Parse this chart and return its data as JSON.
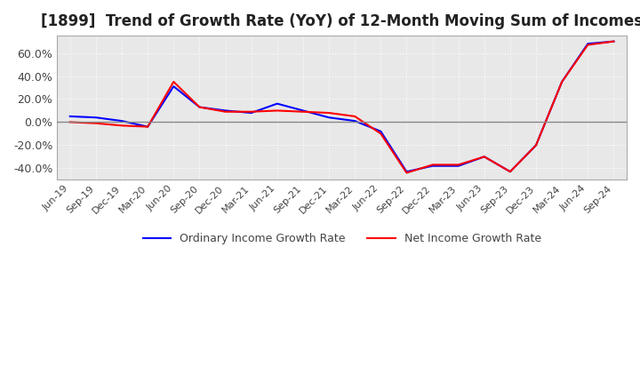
{
  "title": "[1899]  Trend of Growth Rate (YoY) of 12-Month Moving Sum of Incomes",
  "title_fontsize": 12,
  "ylim": [
    -0.5,
    0.75
  ],
  "yticks": [
    -0.4,
    -0.2,
    0.0,
    0.2,
    0.4,
    0.6
  ],
  "plot_bg_color": "#e8e8e8",
  "fig_bg_color": "#ffffff",
  "grid_color": "#ffffff",
  "legend_labels": [
    "Ordinary Income Growth Rate",
    "Net Income Growth Rate"
  ],
  "legend_colors": [
    "#0000ff",
    "#ff0000"
  ],
  "x_labels": [
    "Jun-19",
    "Sep-19",
    "Dec-19",
    "Mar-20",
    "Jun-20",
    "Sep-20",
    "Dec-20",
    "Mar-21",
    "Jun-21",
    "Sep-21",
    "Dec-21",
    "Mar-22",
    "Jun-22",
    "Sep-22",
    "Dec-22",
    "Mar-23",
    "Jun-23",
    "Sep-23",
    "Dec-23",
    "Mar-24",
    "Jun-24",
    "Sep-24"
  ],
  "ordinary_income": [
    0.05,
    0.04,
    0.01,
    -0.04,
    0.31,
    0.13,
    0.1,
    0.08,
    0.16,
    0.1,
    0.04,
    0.01,
    -0.08,
    -0.43,
    -0.38,
    -0.38,
    -0.3,
    -0.43,
    -0.2,
    0.35,
    0.68,
    0.7
  ],
  "net_income": [
    0.0,
    -0.01,
    -0.03,
    -0.04,
    0.35,
    0.13,
    0.09,
    0.09,
    0.1,
    0.09,
    0.08,
    0.05,
    -0.1,
    -0.44,
    -0.37,
    -0.37,
    -0.3,
    -0.43,
    -0.2,
    0.35,
    0.67,
    0.7
  ]
}
